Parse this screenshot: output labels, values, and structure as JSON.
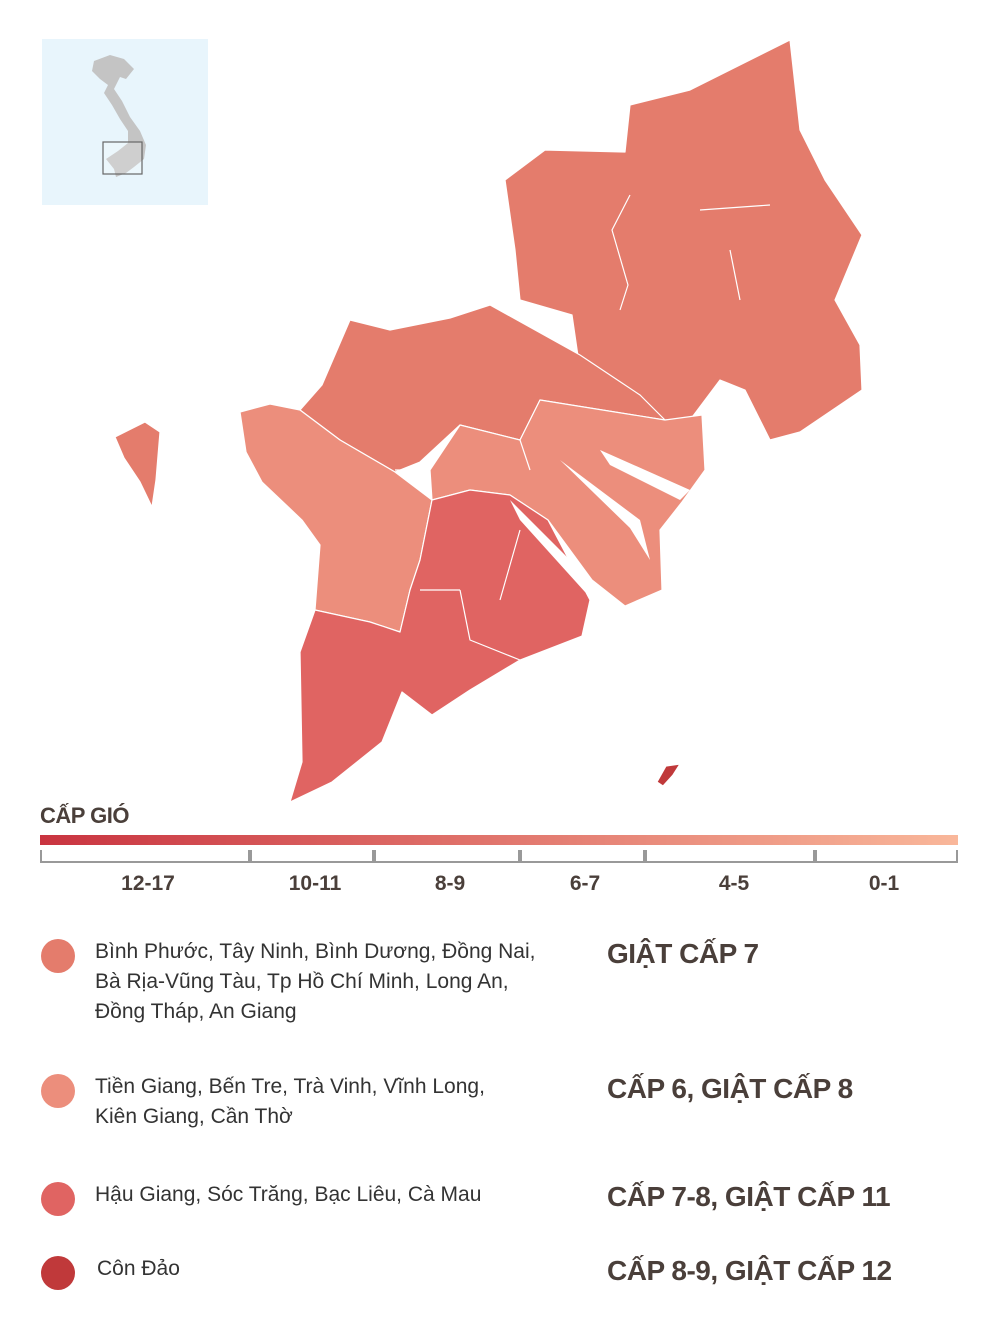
{
  "scale": {
    "title": "CẤP GIÓ",
    "gradient_colors": [
      "#c93440",
      "#f9b79a"
    ],
    "ranges": [
      "12-17",
      "10-11",
      "8-9",
      "6-7",
      "4-5",
      "0-1"
    ]
  },
  "colors": {
    "group1": "#e47c6c",
    "group2": "#ec8e7c",
    "group3": "#e06462",
    "group4": "#c0393a",
    "inset_bg": "#e8f5fc",
    "inset_land": "#c4c4c4"
  },
  "legend": [
    {
      "areas_lines": [
        "Bình Phước, Tây Ninh, Bình Dương, Đồng Nai,",
        "Bà Rịa-Vũng Tàu, Tp Hồ Chí Minh, Long An,",
        "Đồng Tháp, An Giang"
      ],
      "level": "GIẬT CẤP 7",
      "color": "#e47c6c"
    },
    {
      "areas_lines": [
        "Tiền Giang, Bến Tre, Trà Vinh, Vĩnh Long,",
        "Kiên Giang, Cần Thờ"
      ],
      "level": "CẤP 6, GIẬT CẤP 8",
      "color": "#ec8e7c"
    },
    {
      "areas_lines": [
        "Hậu Giang, Sóc Trăng, Bạc Liêu, Cà Mau"
      ],
      "level": "CẤP 7-8, GIẬT CẤP 11",
      "color": "#e06462"
    },
    {
      "areas_lines": [
        "Côn Đảo"
      ],
      "level": "CẤP 8-9, GIẬT CẤP 12",
      "color": "#c0393a"
    }
  ]
}
